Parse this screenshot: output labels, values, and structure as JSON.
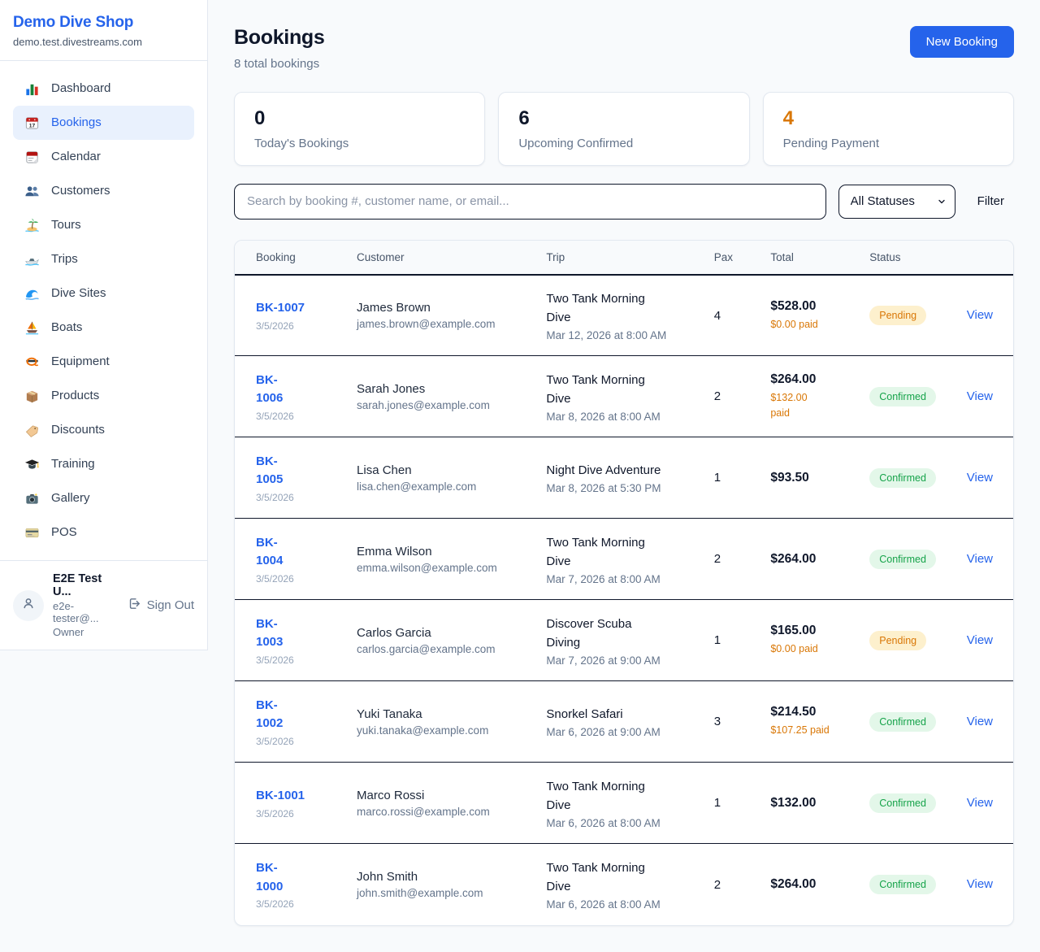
{
  "colors": {
    "accent": "#2563eb",
    "pending": "#d97706",
    "confirmed": "#16a34a",
    "dark": "#0f172a"
  },
  "sidebar": {
    "shop_name": "Demo Dive Shop",
    "domain": "demo.test.divestreams.com",
    "items": [
      {
        "label": "Dashboard",
        "icon": "dashboard-icon",
        "active": false
      },
      {
        "label": "Bookings",
        "icon": "bookings-calendar-icon",
        "active": true
      },
      {
        "label": "Calendar",
        "icon": "calendar-icon",
        "active": false
      },
      {
        "label": "Customers",
        "icon": "customers-icon",
        "active": false
      },
      {
        "label": "Tours",
        "icon": "island-icon",
        "active": false
      },
      {
        "label": "Trips",
        "icon": "speedboat-icon",
        "active": false
      },
      {
        "label": "Dive Sites",
        "icon": "wave-icon",
        "active": false
      },
      {
        "label": "Boats",
        "icon": "sailboat-icon",
        "active": false
      },
      {
        "label": "Equipment",
        "icon": "dive-mask-icon",
        "active": false
      },
      {
        "label": "Products",
        "icon": "package-icon",
        "active": false
      },
      {
        "label": "Discounts",
        "icon": "tag-icon",
        "active": false
      },
      {
        "label": "Training",
        "icon": "graduation-cap-icon",
        "active": false
      },
      {
        "label": "Gallery",
        "icon": "camera-icon",
        "active": false
      },
      {
        "label": "POS",
        "icon": "credit-card-icon",
        "active": false
      }
    ],
    "user": {
      "name": "E2E Test U...",
      "email": "e2e-tester@...",
      "role": "Owner",
      "sign_out_label": "Sign Out"
    }
  },
  "header": {
    "title": "Bookings",
    "subtitle": "8 total bookings",
    "new_booking_label": "New Booking"
  },
  "stats": [
    {
      "value": "0",
      "label": "Today's Bookings",
      "color": "#0f172a"
    },
    {
      "value": "6",
      "label": "Upcoming Confirmed",
      "color": "#0f172a"
    },
    {
      "value": "4",
      "label": "Pending Payment",
      "color": "#d97706"
    }
  ],
  "filters": {
    "search_placeholder": "Search by booking #, customer name, or email...",
    "status_selected": "All Statuses",
    "filter_label": "Filter"
  },
  "table": {
    "columns": [
      "Booking",
      "Customer",
      "Trip",
      "Pax",
      "Total",
      "Status"
    ],
    "view_label": "View",
    "rows": [
      {
        "id": "BK-1007",
        "date": "3/5/2026",
        "customer": "James Brown",
        "email": "james.brown@example.com",
        "trip": "Two Tank Morning\nDive",
        "trip_time": "Mar 12, 2026 at 8:00 AM",
        "pax": "4",
        "total": "$528.00",
        "paid": "$0.00 paid",
        "status": "Pending"
      },
      {
        "id": "BK-\n1006",
        "date": "3/5/2026",
        "customer": "Sarah Jones",
        "email": "sarah.jones@example.com",
        "trip": "Two Tank Morning\nDive",
        "trip_time": "Mar 8, 2026 at 8:00 AM",
        "pax": "2",
        "total": "$264.00",
        "paid": "$132.00\npaid",
        "status": "Confirmed"
      },
      {
        "id": "BK-\n1005",
        "date": "3/5/2026",
        "customer": "Lisa Chen",
        "email": "lisa.chen@example.com",
        "trip": "Night Dive Adventure",
        "trip_time": "Mar 8, 2026 at 5:30 PM",
        "pax": "1",
        "total": "$93.50",
        "paid": "",
        "status": "Confirmed"
      },
      {
        "id": "BK-\n1004",
        "date": "3/5/2026",
        "customer": "Emma Wilson",
        "email": "emma.wilson@example.com",
        "trip": "Two Tank Morning\nDive",
        "trip_time": "Mar 7, 2026 at 8:00 AM",
        "pax": "2",
        "total": "$264.00",
        "paid": "",
        "status": "Confirmed"
      },
      {
        "id": "BK-\n1003",
        "date": "3/5/2026",
        "customer": "Carlos Garcia",
        "email": "carlos.garcia@example.com",
        "trip": "Discover Scuba\nDiving",
        "trip_time": "Mar 7, 2026 at 9:00 AM",
        "pax": "1",
        "total": "$165.00",
        "paid": "$0.00 paid",
        "status": "Pending"
      },
      {
        "id": "BK-\n1002",
        "date": "3/5/2026",
        "customer": "Yuki Tanaka",
        "email": "yuki.tanaka@example.com",
        "trip": "Snorkel Safari",
        "trip_time": "Mar 6, 2026 at 9:00 AM",
        "pax": "3",
        "total": "$214.50",
        "paid": "$107.25 paid",
        "status": "Confirmed"
      },
      {
        "id": "BK-1001",
        "date": "3/5/2026",
        "customer": "Marco Rossi",
        "email": "marco.rossi@example.com",
        "trip": "Two Tank Morning\nDive",
        "trip_time": "Mar 6, 2026 at 8:00 AM",
        "pax": "1",
        "total": "$132.00",
        "paid": "",
        "status": "Confirmed"
      },
      {
        "id": "BK-\n1000",
        "date": "3/5/2026",
        "customer": "John Smith",
        "email": "john.smith@example.com",
        "trip": "Two Tank Morning\nDive",
        "trip_time": "Mar 6, 2026 at 8:00 AM",
        "pax": "2",
        "total": "$264.00",
        "paid": "",
        "status": "Confirmed"
      }
    ]
  }
}
